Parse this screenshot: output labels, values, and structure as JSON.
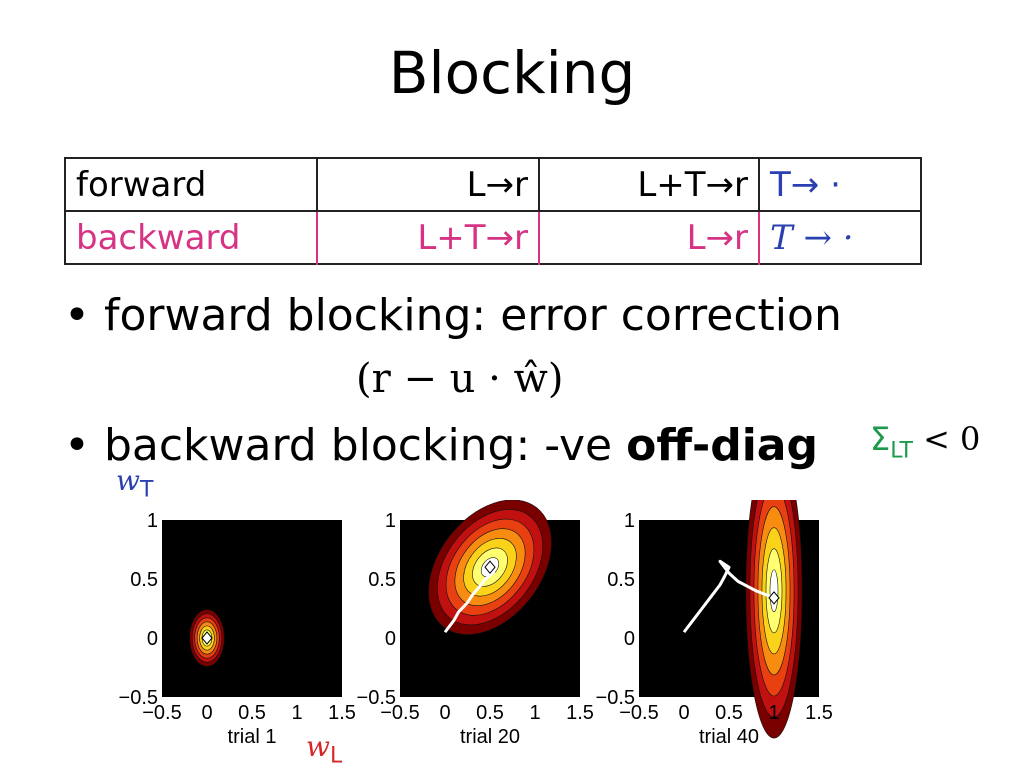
{
  "slide": {
    "title": "Blocking"
  },
  "table": {
    "rows": [
      {
        "label": "forward",
        "c1": "L→r",
        "c2": "L+T→r",
        "c3": "T→ ·"
      },
      {
        "label": "backward",
        "c1": "L+T→r",
        "c2": "L→r",
        "c3": "T → ·"
      }
    ]
  },
  "bullets": [
    {
      "text": "forward blocking: error correction"
    },
    {
      "prefix": "backward blocking: -ve ",
      "bold": "off-diag"
    }
  ],
  "formula": "(r − u · ŵ)",
  "sigma_expr": {
    "sym": "Σ",
    "sub": "LT",
    "rest": " < 0"
  },
  "axis_labels": {
    "wT": {
      "w": "w",
      "sub": "T"
    },
    "wL": {
      "w": "w",
      "sub": "L"
    }
  },
  "colors": {
    "magenta": "#d63384",
    "blue": "#2a3fb0",
    "green": "#1a9a4a",
    "red": "#d62728"
  },
  "chart_data": [
    {
      "type": "heatmap",
      "xlabel": "trial 1",
      "xlim": [
        -0.5,
        1.5
      ],
      "ylim": [
        -0.5,
        1
      ],
      "xticks": [
        "−0.5",
        "0",
        "0.5",
        "1",
        "1.5"
      ],
      "yticks": [
        "−0.5",
        "0",
        "0.5",
        "1"
      ],
      "gaussian": {
        "mean": [
          0,
          0
        ],
        "sd": [
          0.08,
          0.1
        ],
        "rotation_deg": 0
      },
      "marker": [
        0,
        0
      ],
      "trajectory": []
    },
    {
      "type": "heatmap",
      "xlabel": "trial 20",
      "xlim": [
        -0.5,
        1.5
      ],
      "ylim": [
        -0.5,
        1
      ],
      "xticks": [
        "−0.5",
        "0",
        "0.5",
        "1",
        "1.5"
      ],
      "yticks": [
        "−0.5",
        "0",
        "0.5",
        "1"
      ],
      "gaussian": {
        "mean": [
          0.5,
          0.6
        ],
        "sd": [
          0.35,
          0.18
        ],
        "rotation_deg": -52
      },
      "marker": [
        0.5,
        0.6
      ],
      "trajectory": [
        [
          0,
          0.05
        ],
        [
          0.1,
          0.15
        ],
        [
          0.15,
          0.22
        ],
        [
          0.25,
          0.3
        ],
        [
          0.3,
          0.36
        ],
        [
          0.4,
          0.45
        ],
        [
          0.45,
          0.5
        ],
        [
          0.55,
          0.56
        ]
      ]
    },
    {
      "type": "heatmap",
      "xlabel": "trial 40",
      "xlim": [
        -0.5,
        1.5
      ],
      "ylim": [
        -0.5,
        1
      ],
      "xticks": [
        "−0.5",
        "0",
        "0.5",
        "1",
        "1.5"
      ],
      "yticks": [
        "−0.5",
        "0",
        "0.5",
        "1"
      ],
      "gaussian": {
        "mean": [
          1.0,
          0.4
        ],
        "sd": [
          0.13,
          0.52
        ],
        "rotation_deg": 0
      },
      "marker": [
        1.0,
        0.34
      ],
      "trajectory": [
        [
          0,
          0.05
        ],
        [
          0.1,
          0.15
        ],
        [
          0.2,
          0.25
        ],
        [
          0.3,
          0.35
        ],
        [
          0.4,
          0.45
        ],
        [
          0.45,
          0.52
        ],
        [
          0.5,
          0.6
        ],
        [
          0.4,
          0.65
        ],
        [
          0.5,
          0.55
        ],
        [
          0.6,
          0.48
        ],
        [
          0.8,
          0.4
        ],
        [
          1.0,
          0.34
        ]
      ]
    }
  ]
}
